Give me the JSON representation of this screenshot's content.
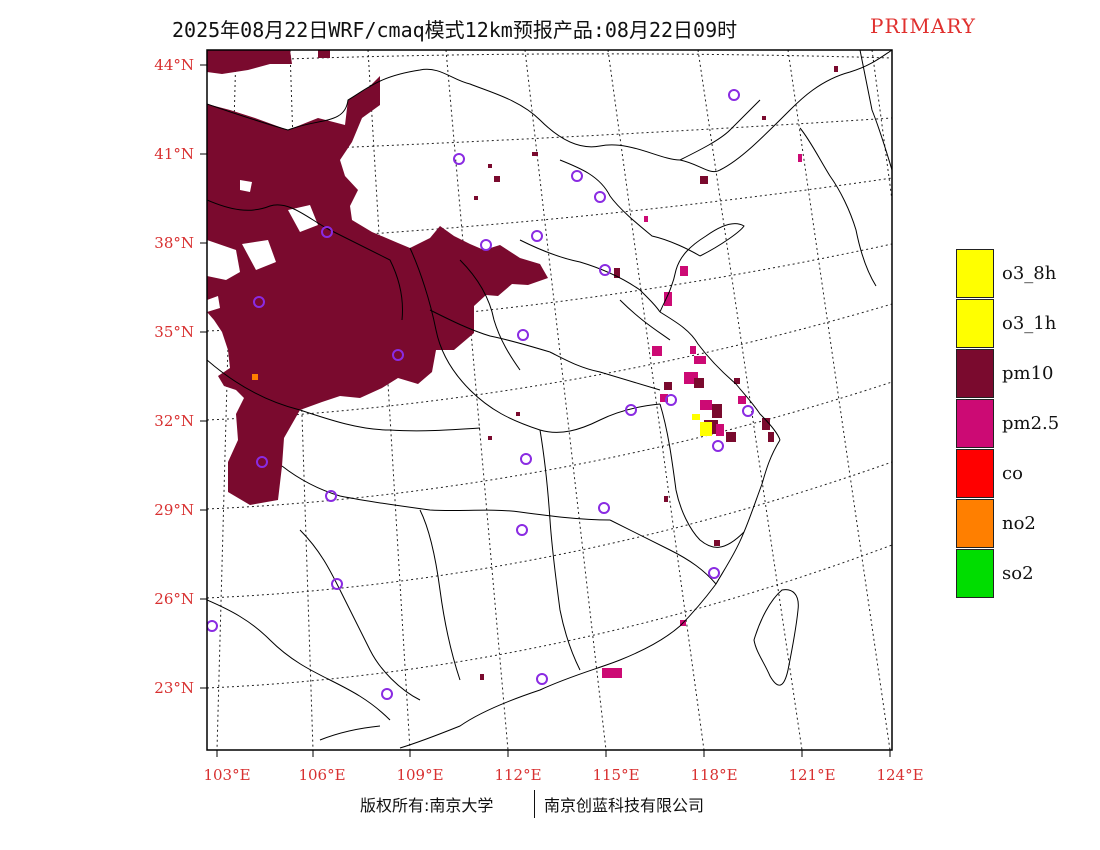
{
  "title": {
    "main": "2025年08月22日WRF/cmaq模式12km预报产品:08月22日09时",
    "tag": "PRIMARY",
    "tag_color": "#e0302e"
  },
  "map": {
    "lat_labels": [
      "44°N",
      "41°N",
      "38°N",
      "35°N",
      "32°N",
      "29°N",
      "26°N",
      "23°N"
    ],
    "lon_labels": [
      "103°E",
      "106°E",
      "109°E",
      "112°E",
      "115°E",
      "118°E",
      "121°E",
      "124°E"
    ],
    "field_colors": {
      "pm10": "#7a0a2e",
      "pm25": "#cc0a74",
      "o3": "#ffff00",
      "no2": "#ff7f00"
    },
    "station_marker_color": "#8a2be2"
  },
  "legend": {
    "items": [
      {
        "label": "o3_8h",
        "color": "#ffff00"
      },
      {
        "label": "o3_1h",
        "color": "#ffff00"
      },
      {
        "label": "pm10",
        "color": "#7a0a2e"
      },
      {
        "label": "pm2.5",
        "color": "#cc0a74"
      },
      {
        "label": "co",
        "color": "#ff0000"
      },
      {
        "label": "no2",
        "color": "#ff7f00"
      },
      {
        "label": "so2",
        "color": "#00dd00"
      }
    ]
  },
  "footer": {
    "left": "版权所有:南京大学",
    "right": "南京创蓝科技有限公司"
  }
}
